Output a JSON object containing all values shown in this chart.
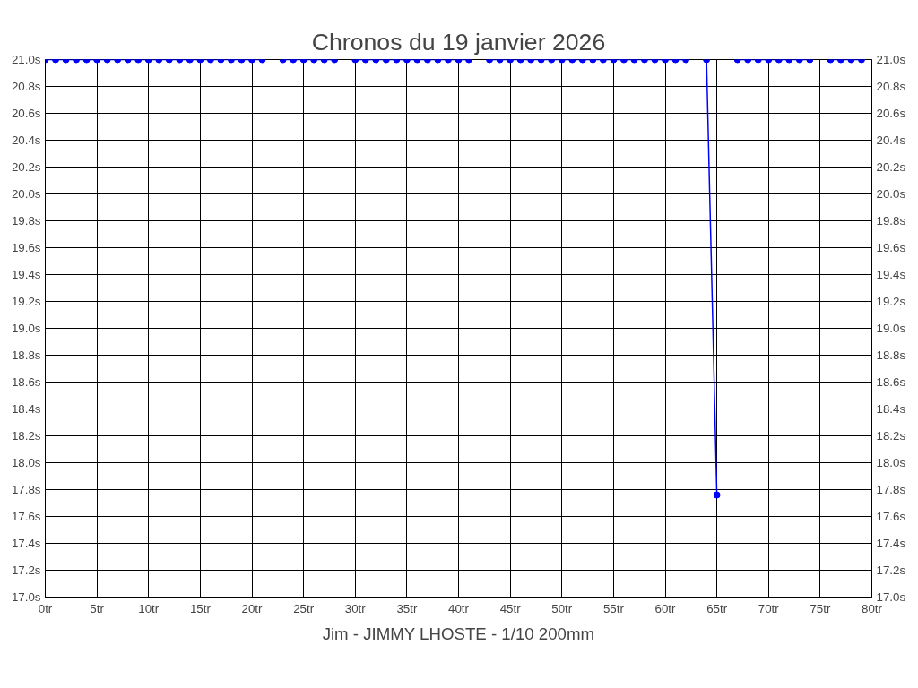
{
  "chart_data": {
    "type": "line",
    "title": "Chronos du 19 janvier 2026",
    "annotations": [
      "Jim - JIMMY LHOSTE - 1/10 200mm"
    ],
    "x": [
      0,
      1,
      2,
      3,
      4,
      5,
      6,
      7,
      8,
      9,
      10,
      11,
      12,
      13,
      14,
      15,
      16,
      17,
      18,
      19,
      20,
      21,
      22,
      23,
      24,
      25,
      26,
      27,
      28,
      29,
      30,
      31,
      32,
      33,
      34,
      35,
      36,
      37,
      38,
      39,
      40,
      41,
      42,
      43,
      44,
      45,
      46,
      47,
      48,
      49,
      50,
      51,
      52,
      53,
      54,
      55,
      56,
      57,
      58,
      59,
      60,
      61,
      62,
      63,
      64,
      65,
      66,
      67,
      68,
      69,
      70,
      71,
      72,
      73,
      74,
      75,
      76,
      77,
      78,
      79
    ],
    "series": [
      {
        "color": "#0000ff",
        "values": [
          21.0,
          21.0,
          21.0,
          21.0,
          21.0,
          21.0,
          21.0,
          21.0,
          21.0,
          21.0,
          21.0,
          21.0,
          21.0,
          21.0,
          21.0,
          21.0,
          21.0,
          21.0,
          21.0,
          21.0,
          21.0,
          21.0,
          null,
          21.0,
          21.0,
          21.0,
          21.0,
          21.0,
          21.0,
          null,
          21.0,
          21.0,
          21.0,
          21.0,
          21.0,
          21.0,
          21.0,
          21.0,
          21.0,
          21.0,
          21.0,
          21.0,
          null,
          21.0,
          21.0,
          21.0,
          21.0,
          21.0,
          21.0,
          21.0,
          21.0,
          21.0,
          21.0,
          21.0,
          21.0,
          21.0,
          21.0,
          21.0,
          21.0,
          21.0,
          21.0,
          21.0,
          21.0,
          null,
          21.0,
          17.76,
          null,
          21.0,
          21.0,
          21.0,
          21.0,
          21.0,
          21.0,
          21.0,
          21.0,
          null,
          21.0,
          21.0,
          21.0,
          21.0
        ]
      }
    ],
    "xlim": [
      0,
      80
    ],
    "xticks": [
      {
        "value": 0,
        "label": "0tr"
      },
      {
        "value": 5,
        "label": "5tr"
      },
      {
        "value": 10,
        "label": "10tr"
      },
      {
        "value": 15,
        "label": "15tr"
      },
      {
        "value": 20,
        "label": "20tr"
      },
      {
        "value": 25,
        "label": "25tr"
      },
      {
        "value": 30,
        "label": "30tr"
      },
      {
        "value": 35,
        "label": "35tr"
      },
      {
        "value": 40,
        "label": "40tr"
      },
      {
        "value": 45,
        "label": "45tr"
      },
      {
        "value": 50,
        "label": "50tr"
      },
      {
        "value": 55,
        "label": "55tr"
      },
      {
        "value": 60,
        "label": "60tr"
      },
      {
        "value": 65,
        "label": "65tr"
      },
      {
        "value": 70,
        "label": "70tr"
      },
      {
        "value": 75,
        "label": "75tr"
      },
      {
        "value": 80,
        "label": "80tr"
      }
    ],
    "ylim": [
      17.0,
      21.0
    ],
    "yticks": [
      {
        "value": 17.0,
        "label": "17.0s"
      },
      {
        "value": 17.2,
        "label": "17.2s"
      },
      {
        "value": 17.4,
        "label": "17.4s"
      },
      {
        "value": 17.6,
        "label": "17.6s"
      },
      {
        "value": 17.8,
        "label": "17.8s"
      },
      {
        "value": 18.0,
        "label": "18.0s"
      },
      {
        "value": 18.2,
        "label": "18.2s"
      },
      {
        "value": 18.4,
        "label": "18.4s"
      },
      {
        "value": 18.6,
        "label": "18.6s"
      },
      {
        "value": 18.8,
        "label": "18.8s"
      },
      {
        "value": 19.0,
        "label": "19.0s"
      },
      {
        "value": 19.2,
        "label": "19.2s"
      },
      {
        "value": 19.4,
        "label": "19.4s"
      },
      {
        "value": 19.6,
        "label": "19.6s"
      },
      {
        "value": 19.8,
        "label": "19.8s"
      },
      {
        "value": 20.0,
        "label": "20.0s"
      },
      {
        "value": 20.2,
        "label": "20.2s"
      },
      {
        "value": 20.4,
        "label": "20.4s"
      },
      {
        "value": 20.6,
        "label": "20.6s"
      },
      {
        "value": 20.8,
        "label": "20.8s"
      },
      {
        "value": 21.0,
        "label": "21.0s"
      }
    ],
    "y2lim": [
      17.0,
      21.0
    ],
    "y2ticks": [
      {
        "value": 17.0,
        "label": "17.0s"
      },
      {
        "value": 17.2,
        "label": "17.2s"
      },
      {
        "value": 17.4,
        "label": "17.4s"
      },
      {
        "value": 17.6,
        "label": "17.6s"
      },
      {
        "value": 17.8,
        "label": "17.8s"
      },
      {
        "value": 18.0,
        "label": "18.0s"
      },
      {
        "value": 18.2,
        "label": "18.2s"
      },
      {
        "value": 18.4,
        "label": "18.4s"
      },
      {
        "value": 18.6,
        "label": "18.6s"
      },
      {
        "value": 18.8,
        "label": "18.8s"
      },
      {
        "value": 19.0,
        "label": "19.0s"
      },
      {
        "value": 19.2,
        "label": "19.2s"
      },
      {
        "value": 19.4,
        "label": "19.4s"
      },
      {
        "value": 19.6,
        "label": "19.6s"
      },
      {
        "value": 19.8,
        "label": "19.8s"
      },
      {
        "value": 20.0,
        "label": "20.0s"
      },
      {
        "value": 20.2,
        "label": "20.2s"
      },
      {
        "value": 20.4,
        "label": "20.4s"
      },
      {
        "value": 20.6,
        "label": "20.6s"
      },
      {
        "value": 20.8,
        "label": "20.8s"
      },
      {
        "value": 21.0,
        "label": "21.0s"
      }
    ],
    "grid": true,
    "marker": "circle",
    "line_style": "solid"
  }
}
